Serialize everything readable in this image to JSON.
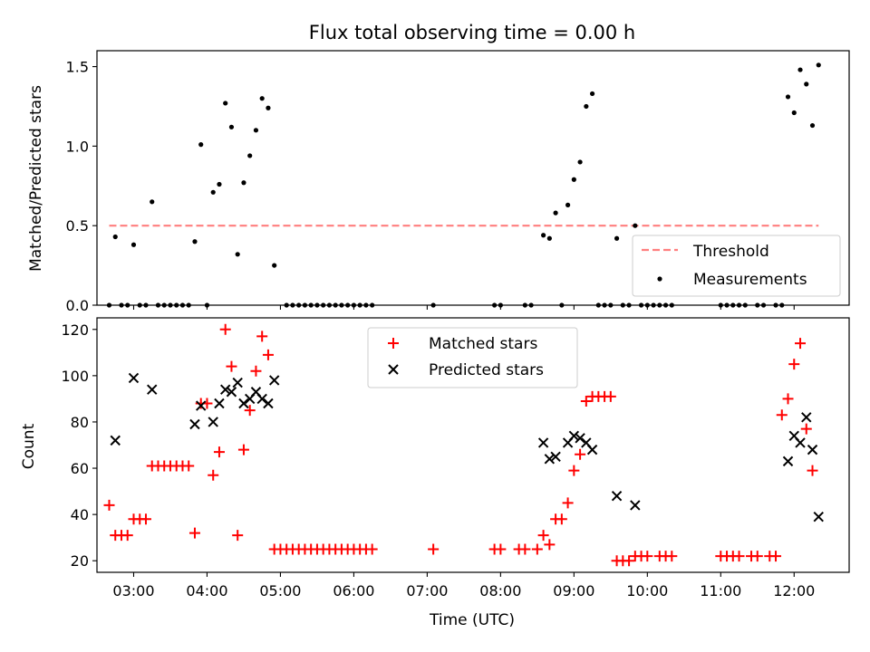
{
  "chart_data": {
    "title": "Flux total observing time = 0.00 h",
    "xlabel": "Time (UTC)",
    "x_ticks": [
      "03:00",
      "04:00",
      "05:00",
      "06:00",
      "07:00",
      "08:00",
      "09:00",
      "10:00",
      "11:00",
      "12:00"
    ],
    "xlim": [
      "02:30",
      "12:45"
    ],
    "panels": [
      {
        "type": "scatter",
        "ylabel": "Matched/Predicted stars",
        "ylim": [
          0,
          1.6
        ],
        "y_ticks": [
          "0.0",
          "0.5",
          "1.0",
          "1.5"
        ],
        "legend_position": "lower-right",
        "threshold": {
          "name": "Threshold",
          "value": 0.5,
          "x_range": [
            "02:40",
            "12:20"
          ],
          "color": "#ff7f7f"
        },
        "series": [
          {
            "name": "Measurements",
            "color": "#000000",
            "points": [
              [
                "02:40",
                0
              ],
              [
                "02:45",
                0.43
              ],
              [
                "02:50",
                0
              ],
              [
                "02:55",
                0
              ],
              [
                "03:00",
                0.38
              ],
              [
                "03:05",
                0
              ],
              [
                "03:10",
                0
              ],
              [
                "03:15",
                0.65
              ],
              [
                "03:20",
                0
              ],
              [
                "03:25",
                0
              ],
              [
                "03:30",
                0
              ],
              [
                "03:35",
                0
              ],
              [
                "03:40",
                0
              ],
              [
                "03:45",
                0
              ],
              [
                "03:50",
                0.4
              ],
              [
                "03:55",
                1.01
              ],
              [
                "04:00",
                0
              ],
              [
                "04:05",
                0.71
              ],
              [
                "04:10",
                0.76
              ],
              [
                "04:15",
                1.27
              ],
              [
                "04:20",
                1.12
              ],
              [
                "04:25",
                0.32
              ],
              [
                "04:30",
                0.77
              ],
              [
                "04:35",
                0.94
              ],
              [
                "04:40",
                1.1
              ],
              [
                "04:45",
                1.3
              ],
              [
                "04:50",
                1.24
              ],
              [
                "04:55",
                0.25
              ],
              [
                "05:05",
                0
              ],
              [
                "05:10",
                0
              ],
              [
                "05:15",
                0
              ],
              [
                "05:20",
                0
              ],
              [
                "05:25",
                0
              ],
              [
                "05:30",
                0
              ],
              [
                "05:35",
                0
              ],
              [
                "05:40",
                0
              ],
              [
                "05:45",
                0
              ],
              [
                "05:50",
                0
              ],
              [
                "05:55",
                0
              ],
              [
                "06:00",
                0
              ],
              [
                "06:05",
                0
              ],
              [
                "06:10",
                0
              ],
              [
                "06:15",
                0
              ],
              [
                "07:05",
                0
              ],
              [
                "07:55",
                0
              ],
              [
                "08:00",
                0
              ],
              [
                "08:20",
                0
              ],
              [
                "08:25",
                0
              ],
              [
                "08:35",
                0.44
              ],
              [
                "08:40",
                0.42
              ],
              [
                "08:45",
                0.58
              ],
              [
                "08:50",
                0
              ],
              [
                "08:55",
                0.63
              ],
              [
                "09:00",
                0.79
              ],
              [
                "09:05",
                0.9
              ],
              [
                "09:10",
                1.25
              ],
              [
                "09:15",
                1.33
              ],
              [
                "09:20",
                0
              ],
              [
                "09:25",
                0
              ],
              [
                "09:30",
                0
              ],
              [
                "09:35",
                0.42
              ],
              [
                "09:40",
                0
              ],
              [
                "09:45",
                0
              ],
              [
                "09:50",
                0.5
              ],
              [
                "09:55",
                0
              ],
              [
                "10:00",
                0
              ],
              [
                "10:05",
                0
              ],
              [
                "10:10",
                0
              ],
              [
                "10:15",
                0
              ],
              [
                "10:20",
                0
              ],
              [
                "11:00",
                0
              ],
              [
                "11:05",
                0
              ],
              [
                "11:10",
                0
              ],
              [
                "11:15",
                0
              ],
              [
                "11:20",
                0
              ],
              [
                "11:30",
                0
              ],
              [
                "11:35",
                0
              ],
              [
                "11:45",
                0
              ],
              [
                "11:50",
                0
              ],
              [
                "11:55",
                1.31
              ],
              [
                "12:00",
                1.21
              ],
              [
                "12:05",
                1.48
              ],
              [
                "12:10",
                1.39
              ],
              [
                "12:15",
                1.13
              ],
              [
                "12:20",
                1.51
              ]
            ]
          }
        ]
      },
      {
        "type": "scatter",
        "ylabel": "Count",
        "ylim": [
          15,
          125
        ],
        "y_ticks": [
          "20",
          "40",
          "60",
          "80",
          "100",
          "120"
        ],
        "legend_position": "top-center",
        "series": [
          {
            "name": "Matched stars",
            "marker": "plus",
            "color": "#ff0000",
            "points": [
              [
                "02:40",
                44
              ],
              [
                "02:45",
                31
              ],
              [
                "02:50",
                31
              ],
              [
                "02:55",
                31
              ],
              [
                "03:00",
                38
              ],
              [
                "03:05",
                38
              ],
              [
                "03:10",
                38
              ],
              [
                "03:15",
                61
              ],
              [
                "03:20",
                61
              ],
              [
                "03:25",
                61
              ],
              [
                "03:30",
                61
              ],
              [
                "03:35",
                61
              ],
              [
                "03:40",
                61
              ],
              [
                "03:45",
                61
              ],
              [
                "03:50",
                32
              ],
              [
                "03:55",
                88
              ],
              [
                "04:00",
                88
              ],
              [
                "04:05",
                57
              ],
              [
                "04:10",
                67
              ],
              [
                "04:15",
                120
              ],
              [
                "04:20",
                104
              ],
              [
                "04:25",
                31
              ],
              [
                "04:30",
                68
              ],
              [
                "04:35",
                85
              ],
              [
                "04:40",
                102
              ],
              [
                "04:45",
                117
              ],
              [
                "04:50",
                109
              ],
              [
                "04:55",
                25
              ],
              [
                "05:00",
                25
              ],
              [
                "05:05",
                25
              ],
              [
                "05:10",
                25
              ],
              [
                "05:15",
                25
              ],
              [
                "05:20",
                25
              ],
              [
                "05:25",
                25
              ],
              [
                "05:30",
                25
              ],
              [
                "05:35",
                25
              ],
              [
                "05:40",
                25
              ],
              [
                "05:45",
                25
              ],
              [
                "05:50",
                25
              ],
              [
                "05:55",
                25
              ],
              [
                "06:00",
                25
              ],
              [
                "06:05",
                25
              ],
              [
                "06:10",
                25
              ],
              [
                "06:15",
                25
              ],
              [
                "07:05",
                25
              ],
              [
                "07:55",
                25
              ],
              [
                "08:00",
                25
              ],
              [
                "08:15",
                25
              ],
              [
                "08:20",
                25
              ],
              [
                "08:30",
                25
              ],
              [
                "08:35",
                31
              ],
              [
                "08:40",
                27
              ],
              [
                "08:45",
                38
              ],
              [
                "08:50",
                38
              ],
              [
                "08:55",
                45
              ],
              [
                "09:00",
                59
              ],
              [
                "09:05",
                66
              ],
              [
                "09:10",
                89
              ],
              [
                "09:15",
                91
              ],
              [
                "09:20",
                91
              ],
              [
                "09:25",
                91
              ],
              [
                "09:30",
                91
              ],
              [
                "09:35",
                20
              ],
              [
                "09:40",
                20
              ],
              [
                "09:45",
                20
              ],
              [
                "09:50",
                22
              ],
              [
                "09:55",
                22
              ],
              [
                "10:00",
                22
              ],
              [
                "10:10",
                22
              ],
              [
                "10:15",
                22
              ],
              [
                "10:20",
                22
              ],
              [
                "11:00",
                22
              ],
              [
                "11:05",
                22
              ],
              [
                "11:10",
                22
              ],
              [
                "11:15",
                22
              ],
              [
                "11:25",
                22
              ],
              [
                "11:30",
                22
              ],
              [
                "11:40",
                22
              ],
              [
                "11:45",
                22
              ],
              [
                "11:50",
                83
              ],
              [
                "11:55",
                90
              ],
              [
                "12:00",
                105
              ],
              [
                "12:05",
                114
              ],
              [
                "12:10",
                77
              ],
              [
                "12:15",
                59
              ]
            ]
          },
          {
            "name": "Predicted stars",
            "marker": "x",
            "color": "#000000",
            "points": [
              [
                "02:45",
                72
              ],
              [
                "03:00",
                99
              ],
              [
                "03:15",
                94
              ],
              [
                "03:50",
                79
              ],
              [
                "03:55",
                87
              ],
              [
                "04:05",
                80
              ],
              [
                "04:10",
                88
              ],
              [
                "04:15",
                94
              ],
              [
                "04:20",
                93
              ],
              [
                "04:25",
                97
              ],
              [
                "04:30",
                88
              ],
              [
                "04:35",
                90
              ],
              [
                "04:40",
                93
              ],
              [
                "04:45",
                90
              ],
              [
                "04:50",
                88
              ],
              [
                "04:55",
                98
              ],
              [
                "08:35",
                71
              ],
              [
                "08:40",
                64
              ],
              [
                "08:45",
                65
              ],
              [
                "08:55",
                71
              ],
              [
                "09:00",
                74
              ],
              [
                "09:05",
                73
              ],
              [
                "09:10",
                71
              ],
              [
                "09:15",
                68
              ],
              [
                "09:35",
                48
              ],
              [
                "09:50",
                44
              ],
              [
                "11:55",
                63
              ],
              [
                "12:00",
                74
              ],
              [
                "12:05",
                71
              ],
              [
                "12:10",
                82
              ],
              [
                "12:15",
                68
              ],
              [
                "12:20",
                39
              ]
            ]
          }
        ]
      }
    ]
  }
}
